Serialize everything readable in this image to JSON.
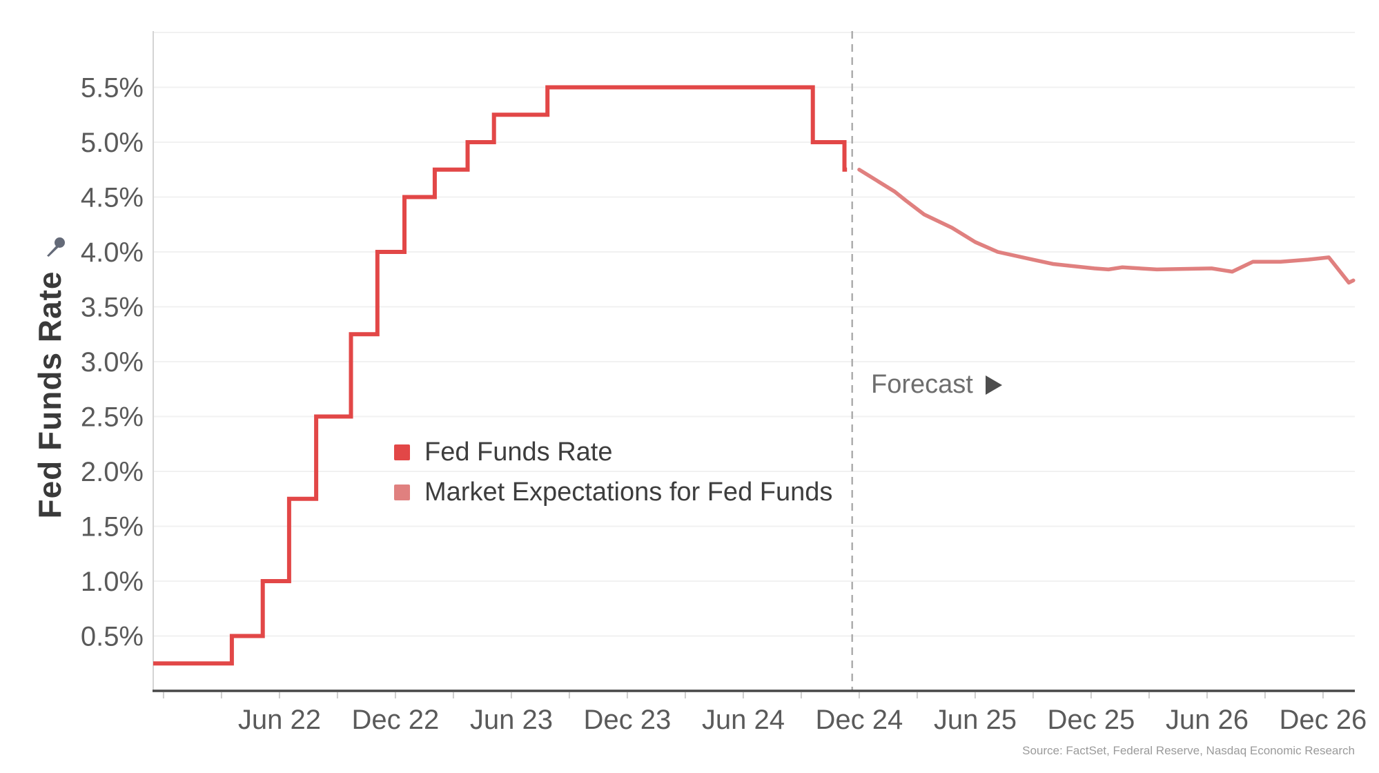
{
  "colors": {
    "background": "#ffffff",
    "gridline": "#f1f1f1",
    "axis": "#474747",
    "axis_light": "#d4d4d4",
    "tick": "#cccccc",
    "tick_label": "#5a5a5a",
    "divider": "#acacac",
    "forecast_text": "#6e6e6e",
    "forecast_arrow": "#4d4d4d",
    "legend_text": "#3d3d3d",
    "ylabel_text": "#3a3a3a",
    "source_text": "#9a9a9a",
    "pin": "#646a78"
  },
  "chart_data": {
    "type": "line",
    "title": "",
    "xlabel": "",
    "ylabel": "Fed Funds Rate",
    "ylim": [
      0,
      6.0
    ],
    "grid": true,
    "y_ticks": [
      [
        0.5,
        "0.5%"
      ],
      [
        1.0,
        "1.0%"
      ],
      [
        1.5,
        "1.5%"
      ],
      [
        2.0,
        "2.0%"
      ],
      [
        2.5,
        "2.5%"
      ],
      [
        3.0,
        "3.0%"
      ],
      [
        3.5,
        "3.5%"
      ],
      [
        4.0,
        "4.0%"
      ],
      [
        4.5,
        "4.5%"
      ],
      [
        5.0,
        "5.0%"
      ],
      [
        5.5,
        "5.5%"
      ]
    ],
    "x_domain": [
      "2021-11-15",
      "2027-01-18"
    ],
    "x_ticks": [
      [
        "2022-06-01",
        "Jun 22"
      ],
      [
        "2022-12-01",
        "Dec 22"
      ],
      [
        "2023-06-01",
        "Jun 23"
      ],
      [
        "2023-12-01",
        "Dec 23"
      ],
      [
        "2024-06-01",
        "Jun 24"
      ],
      [
        "2024-12-01",
        "Dec 24"
      ],
      [
        "2025-06-01",
        "Jun 25"
      ],
      [
        "2025-12-01",
        "Dec 25"
      ],
      [
        "2026-06-01",
        "Jun 26"
      ],
      [
        "2026-12-01",
        "Dec 26"
      ]
    ],
    "minor_tick_start": "2021-12-01",
    "minor_tick_months": 3,
    "forecast": {
      "divider_date": "2024-11-20",
      "label": "Forecast"
    },
    "legend_position": "inside-center-left",
    "series": [
      {
        "name": "Fed Funds Rate",
        "color": "#e24747",
        "style": "step",
        "points": [
          [
            "2021-11-15",
            0.25
          ],
          [
            "2022-03-17",
            0.5
          ],
          [
            "2022-05-05",
            1.0
          ],
          [
            "2022-06-16",
            1.75
          ],
          [
            "2022-07-28",
            2.5
          ],
          [
            "2022-09-22",
            3.25
          ],
          [
            "2022-11-03",
            4.0
          ],
          [
            "2022-12-15",
            4.5
          ],
          [
            "2023-02-02",
            4.75
          ],
          [
            "2023-03-23",
            5.0
          ],
          [
            "2023-05-04",
            5.25
          ],
          [
            "2023-07-27",
            5.5
          ],
          [
            "2024-09-19",
            5.0
          ],
          [
            "2024-11-08",
            4.75
          ]
        ],
        "end_date": "2024-11-12"
      },
      {
        "name": "Market Expectations for Fed Funds",
        "color": "#e0807f",
        "style": "linear",
        "points": [
          [
            "2024-12-01",
            4.75
          ],
          [
            "2025-01-26",
            4.55
          ],
          [
            "2025-02-13",
            4.47
          ],
          [
            "2025-03-12",
            4.34
          ],
          [
            "2025-04-25",
            4.22
          ],
          [
            "2025-06-01",
            4.09
          ],
          [
            "2025-07-06",
            4.0
          ],
          [
            "2025-08-30",
            3.93
          ],
          [
            "2025-10-02",
            3.89
          ],
          [
            "2025-12-06",
            3.85
          ],
          [
            "2025-12-28",
            3.84
          ],
          [
            "2026-01-19",
            3.86
          ],
          [
            "2026-03-13",
            3.84
          ],
          [
            "2026-06-08",
            3.85
          ],
          [
            "2026-07-10",
            3.82
          ],
          [
            "2026-08-12",
            3.91
          ],
          [
            "2026-09-25",
            3.91
          ],
          [
            "2026-11-08",
            3.93
          ],
          [
            "2026-12-10",
            3.95
          ],
          [
            "2027-01-11",
            3.72
          ],
          [
            "2027-01-18",
            3.74
          ]
        ]
      }
    ],
    "source": "Source: FactSet, Federal Reserve, Nasdaq Economic Research"
  }
}
